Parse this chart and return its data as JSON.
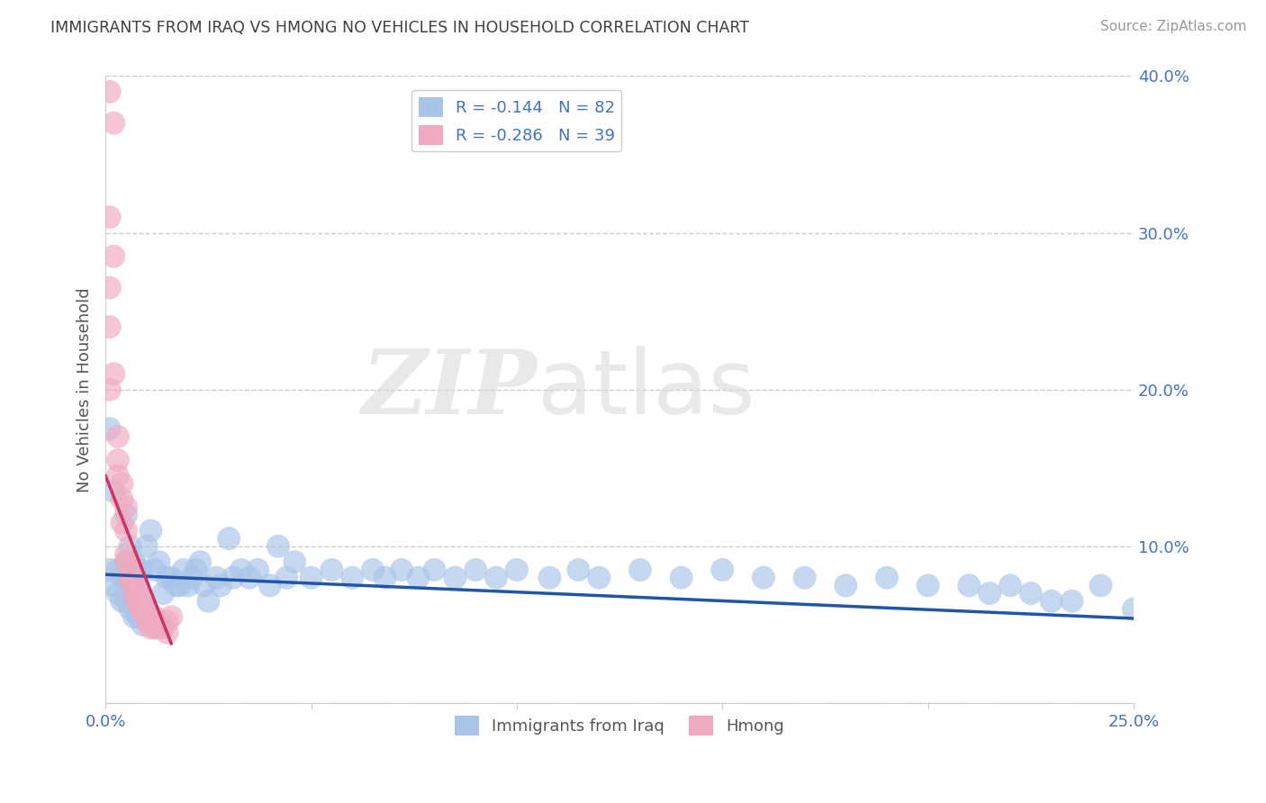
{
  "title": "IMMIGRANTS FROM IRAQ VS HMONG NO VEHICLES IN HOUSEHOLD CORRELATION CHART",
  "source_text": "Source: ZipAtlas.com",
  "ylabel": "No Vehicles in Household",
  "xlim": [
    0.0,
    0.25
  ],
  "ylim": [
    0.0,
    0.4
  ],
  "xticks": [
    0.0,
    0.05,
    0.1,
    0.15,
    0.2,
    0.25
  ],
  "yticks": [
    0.0,
    0.1,
    0.2,
    0.3,
    0.4
  ],
  "watermark": "ZIPatlas",
  "legend_label_iraq": "Immigrants from Iraq",
  "legend_label_hmong": "Hmong",
  "iraq_color": "#a8c4e8",
  "hmong_color": "#f0aac0",
  "iraq_line_color": "#2255aa",
  "hmong_line_color": "#cc3366",
  "iraq_r": -0.144,
  "hmong_r": -0.286,
  "iraq_line_x0": 0.0,
  "iraq_line_y0": 0.082,
  "iraq_line_x1": 0.25,
  "iraq_line_y1": 0.054,
  "hmong_line_x0": 0.0,
  "hmong_line_y0": 0.145,
  "hmong_line_x1": 0.016,
  "hmong_line_y1": 0.038,
  "iraq_points_x": [
    0.001,
    0.001,
    0.002,
    0.002,
    0.003,
    0.003,
    0.004,
    0.004,
    0.005,
    0.005,
    0.005,
    0.006,
    0.006,
    0.006,
    0.007,
    0.007,
    0.007,
    0.008,
    0.008,
    0.008,
    0.009,
    0.009,
    0.009,
    0.01,
    0.01,
    0.011,
    0.012,
    0.013,
    0.014,
    0.015,
    0.016,
    0.017,
    0.018,
    0.019,
    0.02,
    0.021,
    0.022,
    0.023,
    0.024,
    0.025,
    0.027,
    0.028,
    0.03,
    0.031,
    0.033,
    0.035,
    0.037,
    0.04,
    0.042,
    0.044,
    0.046,
    0.05,
    0.055,
    0.06,
    0.065,
    0.068,
    0.072,
    0.076,
    0.08,
    0.085,
    0.09,
    0.095,
    0.1,
    0.108,
    0.115,
    0.12,
    0.13,
    0.14,
    0.15,
    0.16,
    0.17,
    0.18,
    0.19,
    0.2,
    0.21,
    0.215,
    0.22,
    0.225,
    0.23,
    0.235,
    0.242,
    0.25
  ],
  "iraq_points_y": [
    0.175,
    0.085,
    0.135,
    0.075,
    0.085,
    0.07,
    0.08,
    0.065,
    0.12,
    0.09,
    0.065,
    0.1,
    0.08,
    0.06,
    0.09,
    0.075,
    0.055,
    0.085,
    0.07,
    0.055,
    0.085,
    0.065,
    0.05,
    0.1,
    0.06,
    0.11,
    0.085,
    0.09,
    0.07,
    0.08,
    0.08,
    0.075,
    0.075,
    0.085,
    0.075,
    0.08,
    0.085,
    0.09,
    0.075,
    0.065,
    0.08,
    0.075,
    0.105,
    0.08,
    0.085,
    0.08,
    0.085,
    0.075,
    0.1,
    0.08,
    0.09,
    0.08,
    0.085,
    0.08,
    0.085,
    0.08,
    0.085,
    0.08,
    0.085,
    0.08,
    0.085,
    0.08,
    0.085,
    0.08,
    0.085,
    0.08,
    0.085,
    0.08,
    0.085,
    0.08,
    0.08,
    0.075,
    0.08,
    0.075,
    0.075,
    0.07,
    0.075,
    0.07,
    0.065,
    0.065,
    0.075,
    0.06
  ],
  "hmong_points_x": [
    0.001,
    0.001,
    0.001,
    0.001,
    0.001,
    0.002,
    0.002,
    0.002,
    0.003,
    0.003,
    0.003,
    0.004,
    0.004,
    0.004,
    0.005,
    0.005,
    0.005,
    0.005,
    0.006,
    0.006,
    0.006,
    0.007,
    0.007,
    0.008,
    0.008,
    0.008,
    0.009,
    0.009,
    0.01,
    0.01,
    0.011,
    0.011,
    0.012,
    0.012,
    0.013,
    0.014,
    0.015,
    0.015,
    0.016
  ],
  "hmong_points_y": [
    0.39,
    0.31,
    0.265,
    0.24,
    0.2,
    0.37,
    0.285,
    0.21,
    0.17,
    0.155,
    0.145,
    0.14,
    0.13,
    0.115,
    0.125,
    0.11,
    0.095,
    0.09,
    0.09,
    0.082,
    0.078,
    0.075,
    0.068,
    0.075,
    0.068,
    0.062,
    0.062,
    0.058,
    0.06,
    0.052,
    0.055,
    0.048,
    0.055,
    0.048,
    0.048,
    0.048,
    0.052,
    0.045,
    0.055
  ],
  "background_color": "#ffffff",
  "grid_color": "#cccccc",
  "title_color": "#404040",
  "axis_label_color": "#555555",
  "tick_label_color": "#4472c4",
  "source_color": "#999999"
}
